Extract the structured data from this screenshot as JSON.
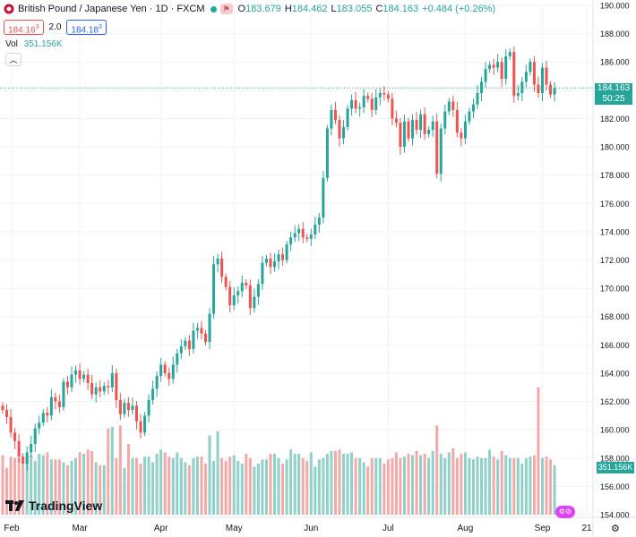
{
  "header": {
    "title": "British Pound / Japanese Yen · 1D · FXCM",
    "open_label": "O",
    "open_value": "183.679",
    "high_label": "H",
    "high_value": "184.462",
    "low_label": "L",
    "low_value": "183.055",
    "close_label": "C",
    "close_value": "184.163",
    "change": "+0.484 (+0.26%)",
    "sell_price": "184.16",
    "sell_sup": "3",
    "spread": "2.0",
    "buy_price": "184.18",
    "buy_sup": "3"
  },
  "volume_legend": {
    "label": "Vol",
    "value": "351.156K"
  },
  "price_tag": {
    "price": "184.163",
    "countdown": "50:25"
  },
  "volume_tag": "351.156K",
  "logo": {
    "text": "TradingView"
  },
  "colors": {
    "up": "#26a69a",
    "down": "#ef5350",
    "vol_up": "#8fd1c8",
    "vol_down": "#f4a9a8",
    "grid": "#f0f3fa"
  },
  "chart_data": {
    "type": "candlestick",
    "title": "British Pound / Japanese Yen · 1D · FXCM",
    "y_axis": {
      "ylim": [
        154,
        190
      ],
      "ticks": [
        154,
        156,
        158,
        160,
        162,
        164,
        166,
        168,
        170,
        172,
        174,
        176,
        178,
        180,
        182,
        184,
        186,
        188,
        190
      ],
      "position": "right"
    },
    "x_axis": {
      "tick_labels": [
        "Feb",
        "Mar",
        "Apr",
        "May",
        "Jun",
        "Jul",
        "Aug",
        "Sep",
        "21"
      ]
    },
    "last_price": 184.163,
    "close": [
      161.4,
      160.9,
      159.8,
      159.2,
      158.1,
      157.6,
      158.4,
      159.0,
      160.1,
      160.5,
      161.2,
      161.0,
      162.3,
      162.0,
      161.6,
      163.4,
      163.0,
      163.9,
      164.2,
      163.6,
      163.9,
      163.3,
      162.5,
      163.0,
      162.7,
      163.1,
      163.0,
      164.0,
      162.1,
      161.1,
      161.9,
      161.4,
      161.7,
      160.6,
      159.8,
      161.0,
      162.1,
      162.9,
      163.8,
      164.6,
      164.0,
      163.6,
      164.6,
      165.4,
      165.9,
      166.3,
      165.7,
      167.0,
      167.2,
      166.8,
      166.2,
      168.2,
      171.7,
      172.1,
      170.8,
      170.1,
      168.8,
      169.5,
      169.8,
      170.4,
      170.2,
      168.6,
      169.4,
      170.3,
      171.8,
      172.1,
      171.5,
      171.9,
      172.4,
      172.0,
      173.1,
      173.6,
      173.9,
      174.2,
      173.6,
      173.5,
      173.8,
      174.5,
      175.0,
      177.8,
      181.3,
      182.6,
      181.9,
      180.6,
      181.4,
      182.7,
      183.3,
      182.7,
      182.8,
      183.6,
      183.4,
      182.6,
      183.5,
      183.8,
      183.7,
      183.4,
      182.0,
      181.7,
      180.0,
      181.8,
      180.6,
      181.9,
      181.2,
      182.3,
      180.9,
      181.2,
      181.8,
      178.1,
      181.3,
      182.5,
      183.2,
      182.6,
      181.0,
      180.6,
      181.8,
      182.5,
      183.0,
      183.8,
      184.6,
      185.5,
      185.8,
      185.6,
      186.0,
      184.8,
      186.4,
      186.7,
      183.6,
      183.8,
      184.6,
      185.3,
      186.0,
      184.4,
      183.8,
      185.6,
      184.4,
      183.7,
      184.163
    ],
    "volume": [
      158.2,
      157.3,
      158.1,
      158.0,
      158.0,
      157.4,
      158.0,
      158.2,
      157.8,
      158.3,
      158.2,
      158.4,
      157.9,
      157.9,
      157.9,
      157.7,
      157.5,
      157.8,
      158.0,
      158.4,
      158.3,
      158.6,
      158.5,
      157.7,
      157.5,
      157.5,
      160.1,
      160.2,
      158.0,
      160.3,
      157.3,
      159.0,
      158.0,
      158.0,
      157.6,
      158.1,
      158.1,
      157.7,
      158.3,
      158.6,
      158.4,
      158.1,
      158.0,
      158.4,
      158.0,
      157.7,
      157.5,
      158.0,
      158.1,
      158.1,
      157.6,
      159.6,
      157.8,
      159.9,
      158.0,
      157.8,
      158.1,
      158.2,
      157.8,
      157.6,
      158.3,
      158.0,
      157.4,
      157.6,
      157.9,
      157.9,
      158.3,
      158.3,
      158.0,
      157.6,
      157.9,
      158.6,
      158.3,
      158.3,
      158.0,
      157.8,
      158.4,
      157.4,
      157.9,
      158.0,
      158.3,
      158.5,
      158.5,
      158.6,
      158.3,
      158.3,
      158.4,
      158.0,
      158.0,
      157.7,
      157.4,
      158.0,
      158.0,
      158.0,
      157.6,
      157.9,
      158.0,
      158.4,
      158.0,
      158.1,
      158.3,
      158.2,
      158.5,
      158.2,
      158.3,
      158.0,
      158.5,
      160.3,
      158.3,
      158.0,
      158.4,
      158.7,
      158.0,
      158.3,
      158.4,
      158.0,
      157.9,
      158.1,
      158.0,
      158.0,
      158.6,
      158.1,
      157.9,
      158.5,
      158.2,
      158.0,
      158.0,
      158.0,
      157.6,
      158.0,
      158.1,
      158.2,
      163.0,
      158.0,
      158.1,
      157.9,
      157.5
    ]
  }
}
